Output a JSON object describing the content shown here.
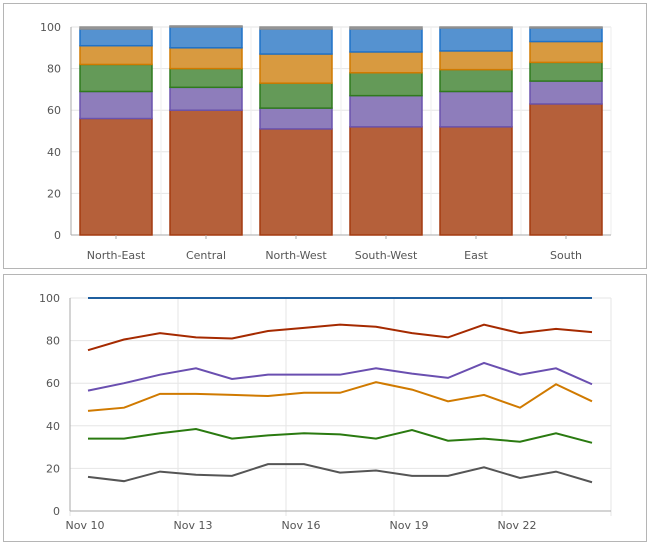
{
  "chart_data": [
    {
      "type": "bar",
      "stacked": true,
      "categories": [
        "North-East",
        "Central",
        "North-West",
        "South-West",
        "East",
        "South"
      ],
      "ylim": [
        0,
        100
      ],
      "yticks": [
        "0",
        "20",
        "40",
        "60",
        "80",
        "100"
      ],
      "grid": true,
      "series": [
        {
          "values": [
            56,
            60,
            51,
            52,
            52,
            63
          ],
          "color": "#b5603a",
          "stroke": "#a33a10"
        },
        {
          "values": [
            13,
            11,
            10,
            15,
            17,
            11
          ],
          "color": "#8e7dbb",
          "stroke": "#6a53ad"
        },
        {
          "values": [
            13,
            9,
            12,
            11,
            10.5,
            9
          ],
          "color": "#649a58",
          "stroke": "#2f7a1e"
        },
        {
          "values": [
            9,
            10,
            14,
            10,
            9,
            10
          ],
          "color": "#d89a40",
          "stroke": "#d07a00"
        },
        {
          "values": [
            8,
            10,
            12,
            11,
            11,
            6.5
          ],
          "color": "#5592d0",
          "stroke": "#1f72c8"
        },
        {
          "values": [
            1,
            0.5,
            1,
            1,
            0.5,
            0.5
          ],
          "color": "#a0a0a0",
          "stroke": "#909090"
        }
      ]
    },
    {
      "type": "line",
      "x": [
        "Nov 10",
        "Nov 11",
        "Nov 12",
        "Nov 13",
        "Nov 14",
        "Nov 15",
        "Nov 16",
        "Nov 17",
        "Nov 18",
        "Nov 19",
        "Nov 20",
        "Nov 21",
        "Nov 22",
        "Nov 23",
        "Nov 24"
      ],
      "xticks": [
        "Nov 10",
        "Nov 13",
        "Nov 16",
        "Nov 19",
        "Nov 22"
      ],
      "ylim": [
        0,
        100
      ],
      "yticks": [
        "0",
        "20",
        "40",
        "60",
        "80",
        "100"
      ],
      "grid": true,
      "series": [
        {
          "color": "#1f5f9f",
          "values": [
            100,
            100,
            100,
            100,
            100,
            100,
            100,
            100,
            100,
            100,
            100,
            100,
            100,
            100,
            100
          ]
        },
        {
          "color": "#a52a00",
          "values": [
            75.5,
            80.5,
            83.5,
            81.5,
            81,
            84.5,
            86,
            87.5,
            86.5,
            83.5,
            81.5,
            87.5,
            83.5,
            85.5,
            84
          ]
        },
        {
          "color": "#6a4fb0",
          "values": [
            56.5,
            60,
            64,
            67,
            62,
            64,
            64,
            64,
            67,
            64.5,
            62.5,
            69.5,
            64,
            67,
            59.5
          ]
        },
        {
          "color": "#d07a00",
          "values": [
            47,
            48.5,
            55,
            55,
            54.5,
            54,
            55.5,
            55.5,
            60.5,
            57,
            51.5,
            54.5,
            48.5,
            59.5,
            51.5
          ]
        },
        {
          "color": "#2a7a10",
          "values": [
            34,
            34,
            36.5,
            38.5,
            34,
            35.5,
            36.5,
            36,
            34,
            38,
            33,
            34,
            32.5,
            36.5,
            32
          ]
        },
        {
          "color": "#555555",
          "values": [
            16,
            14,
            18.5,
            17,
            16.5,
            22,
            22,
            18,
            19,
            16.5,
            16.5,
            20.5,
            15.5,
            18.5,
            13.5
          ]
        }
      ]
    }
  ]
}
